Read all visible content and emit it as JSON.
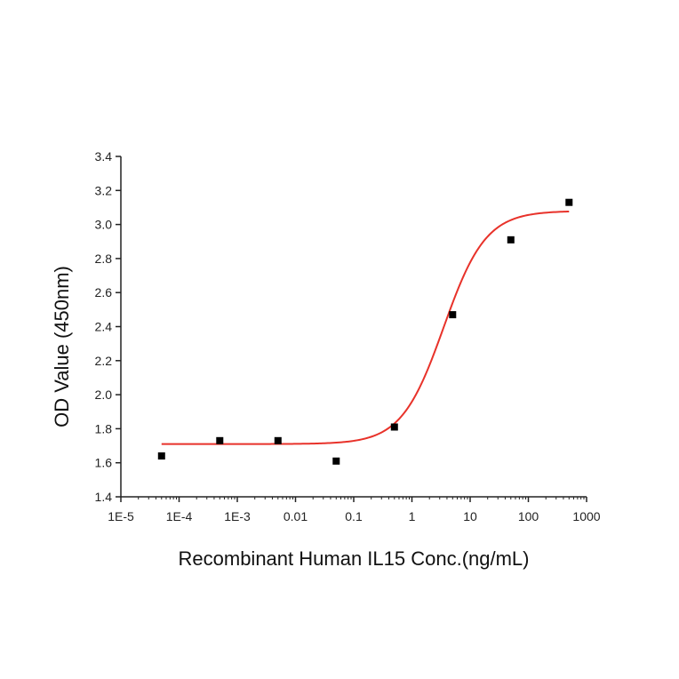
{
  "chart_data": {
    "type": "scatter",
    "xlabel": "Recombinant Human IL15 Conc.(ng/mL)",
    "ylabel": "OD Value (450nm)",
    "xscale": "log",
    "xlim": [
      1e-05,
      1000
    ],
    "ylim": [
      1.4,
      3.4
    ],
    "grid": false,
    "x_tick_labels": [
      "1E-5",
      "1E-4",
      "1E-3",
      "0.01",
      "0.1",
      "1",
      "10",
      "100",
      "1000"
    ],
    "x_tick_values": [
      1e-05,
      0.0001,
      0.001,
      0.01,
      0.1,
      1,
      10,
      100,
      1000
    ],
    "y_tick_labels": [
      "1.4",
      "1.6",
      "1.8",
      "2.0",
      "2.2",
      "2.4",
      "2.6",
      "2.8",
      "3.0",
      "3.2",
      "3.4"
    ],
    "y_tick_values": [
      1.4,
      1.6,
      1.8,
      2.0,
      2.2,
      2.4,
      2.6,
      2.8,
      3.0,
      3.2,
      3.4
    ],
    "points": {
      "x": [
        5e-05,
        0.0005,
        0.005,
        0.05,
        0.5,
        5,
        50,
        500
      ],
      "y": [
        1.64,
        1.73,
        1.73,
        1.61,
        1.81,
        2.47,
        2.91,
        3.13
      ],
      "color": "#000000"
    },
    "fit_curve": {
      "model": "4PL",
      "bottom": 1.71,
      "top": 3.08,
      "ec50": 3.5,
      "hill": 1.2,
      "x_range": [
        5e-05,
        500
      ],
      "color": "#e8322a"
    }
  }
}
